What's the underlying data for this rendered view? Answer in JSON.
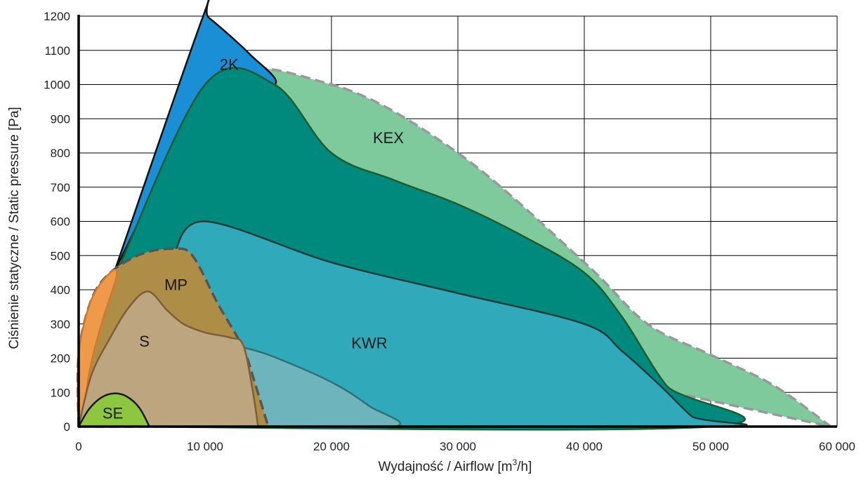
{
  "chart_data": {
    "type": "area",
    "title": "",
    "xlabel": "Wydajność / Airflow [m",
    "xlabel_sup": "3",
    "xlabel_suffix": "/h]",
    "ylabel": "Ciśnienie statyczne / Static pressure [Pa]",
    "xlim": [
      0,
      60000
    ],
    "ylim": [
      0,
      1200
    ],
    "grid": true,
    "x_ticks": [
      0,
      10000,
      20000,
      30000,
      40000,
      50000,
      60000
    ],
    "x_tick_labels": [
      "0",
      "10 000",
      "20 000",
      "30 000",
      "40 000",
      "50 000",
      "60 000"
    ],
    "y_ticks": [
      0,
      100,
      200,
      300,
      400,
      500,
      600,
      700,
      800,
      900,
      1000,
      1100,
      1200
    ],
    "y_tick_labels": [
      "0",
      "100",
      "200",
      "300",
      "400",
      "500",
      "600",
      "700",
      "800",
      "900",
      "1000",
      "1100",
      "1200"
    ],
    "series": [
      {
        "name": "KEX",
        "color": "#7fca9d",
        "stroke": "#999999",
        "dashed": true,
        "points": [
          [
            3000,
            450
          ],
          [
            10000,
            1000
          ],
          [
            20000,
            1000
          ],
          [
            30000,
            800
          ],
          [
            40000,
            480
          ],
          [
            45000,
            300
          ],
          [
            50000,
            210
          ],
          [
            55000,
            120
          ],
          [
            59500,
            0
          ]
        ],
        "label_pos": [
          24500,
          845
        ]
      },
      {
        "name": "2K",
        "color": "#1a8fd6",
        "stroke": "#111111",
        "dashed": false,
        "points": [
          [
            2800,
            450
          ],
          [
            9800,
            1195
          ],
          [
            10300,
            1195
          ],
          [
            13500,
            1090
          ],
          [
            15500,
            1000
          ],
          [
            10000,
            1000
          ]
        ],
        "label_pos": [
          11900,
          1060
        ]
      },
      {
        "name": "",
        "color": "#008a7e",
        "stroke": "#1f5c2c",
        "dashed": false,
        "points": [
          [
            3000,
            450
          ],
          [
            10000,
            1000
          ],
          [
            15500,
            1000
          ],
          [
            20000,
            800
          ],
          [
            25000,
            720
          ],
          [
            30000,
            650
          ],
          [
            35000,
            560
          ],
          [
            40000,
            450
          ],
          [
            43000,
            320
          ],
          [
            46500,
            120
          ],
          [
            50000,
            0
          ],
          [
            2700,
            0
          ]
        ],
        "label_pos": null
      },
      {
        "name": "KWR",
        "color": "#30aaba",
        "stroke": "#1c3c3c",
        "dashed": false,
        "points": [
          [
            7500,
            500
          ],
          [
            10000,
            600
          ],
          [
            20000,
            480
          ],
          [
            30000,
            390
          ],
          [
            40000,
            300
          ],
          [
            43000,
            220
          ],
          [
            46000,
            120
          ],
          [
            48500,
            30
          ],
          [
            50000,
            0
          ],
          [
            7000,
            0
          ]
        ],
        "label_pos": [
          23000,
          245
        ]
      },
      {
        "name": "",
        "color": "#6eb4bc",
        "stroke": "#2f7176",
        "dashed": false,
        "points": [
          [
            12000,
            240
          ],
          [
            15000,
            210
          ],
          [
            20000,
            130
          ],
          [
            23000,
            60
          ],
          [
            25000,
            0
          ],
          [
            14000,
            0
          ]
        ],
        "label_pos": null
      },
      {
        "name": "MP",
        "color": "#ae8d47",
        "stroke": "#555555",
        "dashed": true,
        "points": [
          [
            0,
            0
          ],
          [
            0.5,
            210
          ],
          [
            1000,
            370
          ],
          [
            2500,
            450
          ],
          [
            5000,
            505
          ],
          [
            7500,
            520
          ],
          [
            9000,
            500
          ],
          [
            11000,
            360
          ],
          [
            13000,
            230
          ],
          [
            14000,
            120
          ],
          [
            15000,
            0
          ]
        ],
        "label_pos": [
          7700,
          415
        ]
      },
      {
        "name": "",
        "color": "#ee9a4a",
        "stroke": "#d07a2c",
        "dashed": false,
        "points": [
          [
            0,
            0
          ],
          [
            0.5,
            210
          ],
          [
            1000,
            370
          ],
          [
            2500,
            450
          ],
          [
            3000,
            440
          ],
          [
            1800,
            300
          ],
          [
            800,
            150
          ],
          [
            400,
            0
          ]
        ],
        "label_pos": null
      },
      {
        "name": "S",
        "color": "#bda580",
        "stroke": "#7b5e3a",
        "dashed": false,
        "points": [
          [
            0,
            0
          ],
          [
            1000,
            150
          ],
          [
            2500,
            260
          ],
          [
            4000,
            350
          ],
          [
            5500,
            395
          ],
          [
            7000,
            340
          ],
          [
            8300,
            300
          ],
          [
            10000,
            275
          ],
          [
            12000,
            260
          ],
          [
            13000,
            240
          ],
          [
            13700,
            120
          ],
          [
            14200,
            0
          ]
        ],
        "label_pos": [
          5200,
          250
        ]
      },
      {
        "name": "SE",
        "color": "#8dc63f",
        "stroke": "#1a1a1a",
        "dashed": false,
        "points": [
          [
            0,
            0
          ],
          [
            800,
            50
          ],
          [
            1800,
            85
          ],
          [
            2800,
            97
          ],
          [
            3800,
            88
          ],
          [
            4800,
            55
          ],
          [
            5600,
            0
          ]
        ],
        "label_pos": [
          2700,
          40
        ]
      }
    ]
  }
}
